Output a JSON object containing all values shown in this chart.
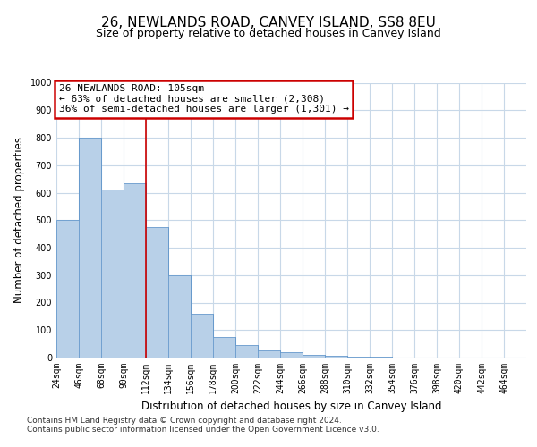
{
  "title": "26, NEWLANDS ROAD, CANVEY ISLAND, SS8 8EU",
  "subtitle": "Size of property relative to detached houses in Canvey Island",
  "xlabel": "Distribution of detached houses by size in Canvey Island",
  "ylabel": "Number of detached properties",
  "bar_edges": [
    24,
    46,
    68,
    90,
    112,
    134,
    156,
    178,
    200,
    222,
    244,
    266,
    288,
    310,
    332,
    354,
    376,
    398,
    420,
    442,
    464
  ],
  "bar_heights": [
    500,
    800,
    610,
    635,
    475,
    300,
    160,
    75,
    45,
    25,
    20,
    10,
    7,
    3,
    2,
    1,
    0,
    0,
    0,
    0
  ],
  "bar_color": "#b8d0e8",
  "bar_edge_color": "#6699cc",
  "vline_x": 112,
  "vline_color": "#cc0000",
  "annotation_text": "26 NEWLANDS ROAD: 105sqm\n← 63% of detached houses are smaller (2,308)\n36% of semi-detached houses are larger (1,301) →",
  "annotation_box_color": "#cc0000",
  "ylim": [
    0,
    1000
  ],
  "yticks": [
    0,
    100,
    200,
    300,
    400,
    500,
    600,
    700,
    800,
    900,
    1000
  ],
  "x_tick_labels": [
    "24sqm",
    "46sqm",
    "68sqm",
    "90sqm",
    "112sqm",
    "134sqm",
    "156sqm",
    "178sqm",
    "200sqm",
    "222sqm",
    "244sqm",
    "266sqm",
    "288sqm",
    "310sqm",
    "332sqm",
    "354sqm",
    "376sqm",
    "398sqm",
    "420sqm",
    "442sqm",
    "464sqm"
  ],
  "footer_text": "Contains HM Land Registry data © Crown copyright and database right 2024.\nContains public sector information licensed under the Open Government Licence v3.0.",
  "bg_color": "#ffffff",
  "grid_color": "#c8d8e8",
  "title_fontsize": 11,
  "subtitle_fontsize": 9,
  "axis_label_fontsize": 8.5,
  "tick_fontsize": 7,
  "annotation_fontsize": 8,
  "footer_fontsize": 6.5
}
